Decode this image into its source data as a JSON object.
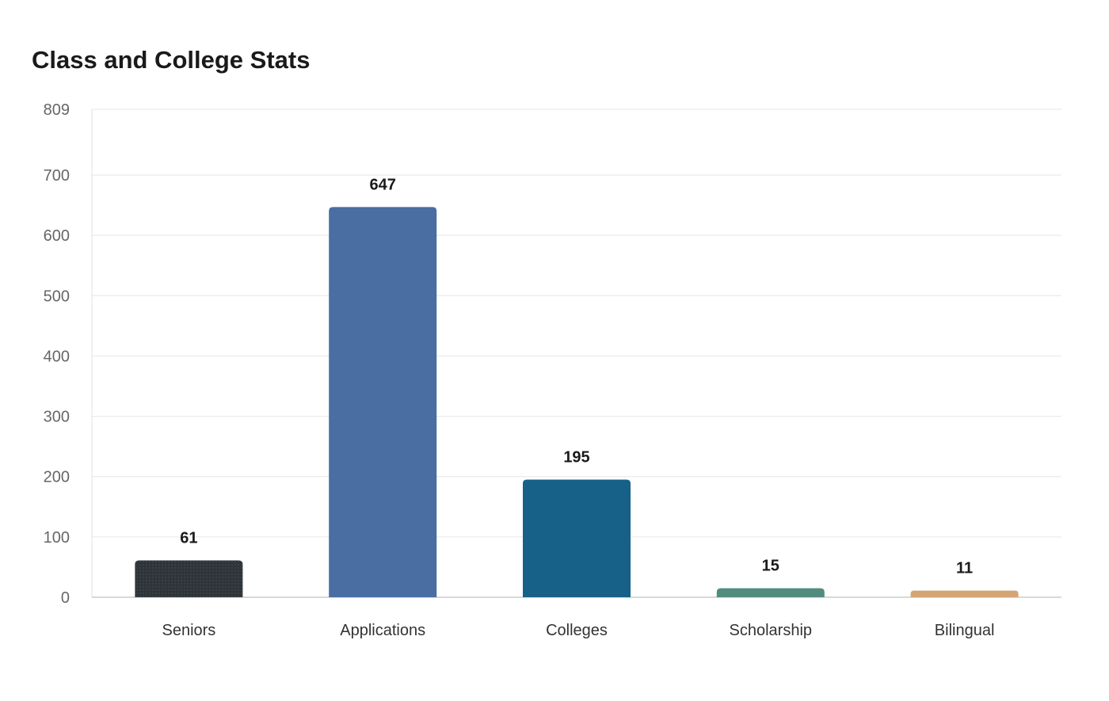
{
  "chart_data": {
    "type": "bar",
    "title": "Class and College Stats",
    "xlabel": "",
    "ylabel": "",
    "categories": [
      "Seniors",
      "Applications",
      "Colleges",
      "Scholarship",
      "Bilingual"
    ],
    "values": [
      61,
      647,
      195,
      15,
      11
    ],
    "data_labels": [
      "61",
      "647",
      "195",
      "15",
      "11"
    ],
    "colors": [
      "#2e3438",
      "#4a6da2",
      "#176188",
      "#528c7e",
      "#d4a574"
    ],
    "ylim": [
      0,
      809
    ],
    "yticks": [
      0,
      100,
      200,
      300,
      400,
      500,
      600,
      700,
      809
    ],
    "ytick_labels": [
      "0",
      "100",
      "200",
      "300",
      "400",
      "500",
      "600",
      "700",
      "809"
    ],
    "grid": true,
    "legend": "none",
    "dotted_pattern_first_bar": true
  }
}
